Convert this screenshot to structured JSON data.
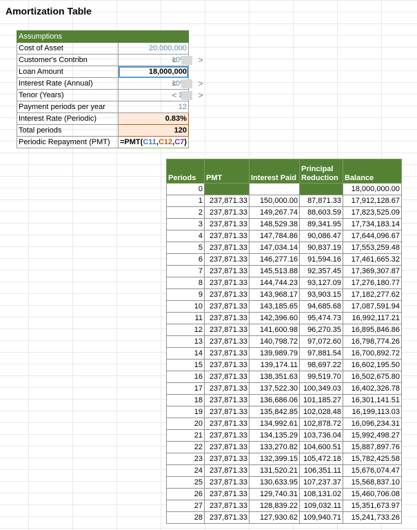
{
  "title": "Amortization Table",
  "assumptions": {
    "header": "Assumptions",
    "rows": [
      {
        "label": "Cost of Asset",
        "value": "20,000,000"
      },
      {
        "label": "Customer's Contribn",
        "value": "10%"
      },
      {
        "label": "Loan Amount",
        "value": "18,000,000"
      },
      {
        "label": "Interest Rate (Annual)",
        "value": "10%"
      },
      {
        "label": "Tenor (Years)",
        "value": "10"
      },
      {
        "label": "Payment periods per year",
        "value": "12"
      },
      {
        "label": "Interest Rate (Periodic)",
        "value": "0.83%"
      },
      {
        "label": "Total periods",
        "value": "120"
      },
      {
        "label": "Periodic Repayment (PMT)",
        "value": ""
      }
    ],
    "formula": {
      "prefix": "=PMT(",
      "ref1": "C11",
      "sep1": ",",
      "ref2": "C12",
      "sep2": ",",
      "ref3": "C7",
      "suffix": ")"
    }
  },
  "spinner": {
    "left_icon": "arrow-left-icon",
    "right_icon": "arrow-right-icon",
    "left_glyph": "<",
    "right_glyph": ">"
  },
  "table": {
    "headers": [
      "Periods",
      "PMT",
      "Interest Paid",
      "Principal Reduction",
      "Balance"
    ],
    "rows": [
      [
        "0",
        "",
        "",
        "",
        "18,000,000.00"
      ],
      [
        "1",
        "237,871.33",
        "150,000.00",
        "87,871.33",
        "17,912,128.67"
      ],
      [
        "2",
        "237,871.33",
        "149,267.74",
        "88,603.59",
        "17,823,525.09"
      ],
      [
        "3",
        "237,871.33",
        "148,529.38",
        "89,341.95",
        "17,734,183.14"
      ],
      [
        "4",
        "237,871.33",
        "147,784.86",
        "90,086.47",
        "17,644,096.67"
      ],
      [
        "5",
        "237,871.33",
        "147,034.14",
        "90,837.19",
        "17,553,259.48"
      ],
      [
        "6",
        "237,871.33",
        "146,277.16",
        "91,594.16",
        "17,461,665.32"
      ],
      [
        "7",
        "237,871.33",
        "145,513.88",
        "92,357.45",
        "17,369,307.87"
      ],
      [
        "8",
        "237,871.33",
        "144,744.23",
        "93,127.09",
        "17,276,180.77"
      ],
      [
        "9",
        "237,871.33",
        "143,968.17",
        "93,903.15",
        "17,182,277.62"
      ],
      [
        "10",
        "237,871.33",
        "143,185.65",
        "94,685.68",
        "17,087,591.94"
      ],
      [
        "11",
        "237,871.33",
        "142,396.60",
        "95,474.73",
        "16,992,117.21"
      ],
      [
        "12",
        "237,871.33",
        "141,600.98",
        "96,270.35",
        "16,895,846.86"
      ],
      [
        "13",
        "237,871.33",
        "140,798.72",
        "97,072.60",
        "16,798,774.26"
      ],
      [
        "14",
        "237,871.33",
        "139,989.79",
        "97,881.54",
        "16,700,892.72"
      ],
      [
        "15",
        "237,871.33",
        "139,174.11",
        "98,697.22",
        "16,602,195.50"
      ],
      [
        "16",
        "237,871.33",
        "138,351.63",
        "99,519.70",
        "16,502,675.80"
      ],
      [
        "17",
        "237,871.33",
        "137,522.30",
        "100,349.03",
        "16,402,326.78"
      ],
      [
        "18",
        "237,871.33",
        "136,686.06",
        "101,185.27",
        "16,301,141.51"
      ],
      [
        "19",
        "237,871.33",
        "135,842.85",
        "102,028.48",
        "16,199,113.03"
      ],
      [
        "20",
        "237,871.33",
        "134,992.61",
        "102,878.72",
        "16,096,234.31"
      ],
      [
        "21",
        "237,871.33",
        "134,135.29",
        "103,736.04",
        "15,992,498.27"
      ],
      [
        "22",
        "237,871.33",
        "133,270.82",
        "104,600.51",
        "15,887,897.76"
      ],
      [
        "23",
        "237,871.33",
        "132,399.15",
        "105,472.18",
        "15,782,425.58"
      ],
      [
        "24",
        "237,871.33",
        "131,520.21",
        "106,351.11",
        "15,676,074.47"
      ],
      [
        "25",
        "237,871.33",
        "130,633.95",
        "107,237.37",
        "15,568,837.10"
      ],
      [
        "26",
        "237,871.33",
        "129,740.31",
        "108,131.02",
        "15,460,706.08"
      ],
      [
        "27",
        "237,871.33",
        "128,839.22",
        "109,032.11",
        "15,351,673.97"
      ],
      [
        "28",
        "237,871.33",
        "127,930.62",
        "109,940.71",
        "15,241,733.26"
      ]
    ]
  }
}
